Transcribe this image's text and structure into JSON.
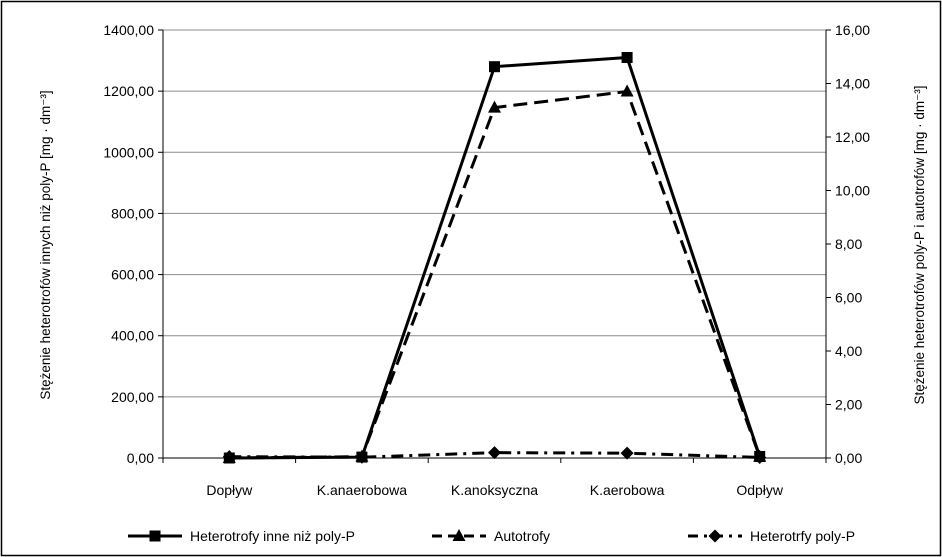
{
  "chart_data": {
    "type": "line",
    "categories": [
      "Dopływ",
      "K.anaerobowa",
      "K.anoksyczna",
      "K.aerobowa",
      "Odpływ"
    ],
    "y_left": {
      "label": "Stężenie heterotrofów innych niż poly-P [mg · dm⁻³]",
      "min": 0,
      "max": 1400,
      "step": 200,
      "ticks": [
        "0,00",
        "200,00",
        "400,00",
        "600,00",
        "800,00",
        "1000,00",
        "1200,00",
        "1400,00"
      ]
    },
    "y_right": {
      "label": "Stężenie heterotrofów poly-P i autotrofów [mg · dm⁻³]",
      "min": 0,
      "max": 16,
      "step": 2,
      "ticks": [
        "0,00",
        "2,00",
        "4,00",
        "6,00",
        "8,00",
        "10,00",
        "12,00",
        "14,00",
        "16,00"
      ]
    },
    "grid": "horizontal",
    "legend_position": "bottom",
    "series": [
      {
        "name": "Heterotrofy inne niż poly-P",
        "axis": "left",
        "marker": "square",
        "dash": "solid",
        "values": [
          0,
          3,
          1280,
          1310,
          5
        ]
      },
      {
        "name": "Autotrofy",
        "axis": "right",
        "marker": "triangle",
        "dash": "dashed",
        "values": [
          0,
          0.05,
          13.1,
          13.7,
          0.05
        ]
      },
      {
        "name": "Heterotrfy poly-P",
        "axis": "right",
        "marker": "diamond",
        "dash": "dashdot",
        "values": [
          0.05,
          0.03,
          0.2,
          0.18,
          0.02
        ]
      }
    ]
  }
}
